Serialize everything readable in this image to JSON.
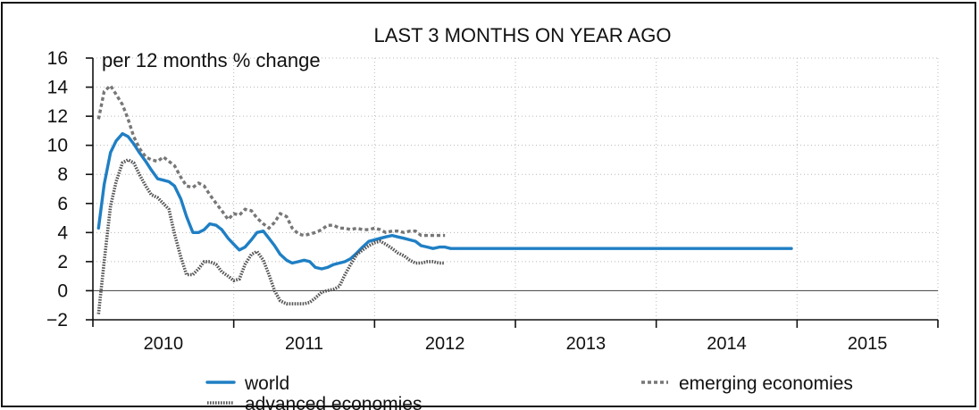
{
  "chart_data": {
    "type": "line",
    "title": "LAST 3 MONTHS ON YEAR AGO",
    "ylabel": "per 12 months % change",
    "xlabel": "",
    "ylim": [
      -2,
      16
    ],
    "xlim": [
      2009.5,
      2015.5
    ],
    "y_ticks": [
      -2,
      0,
      2,
      4,
      6,
      8,
      10,
      12,
      14,
      16
    ],
    "y_tick_labels": [
      "−2",
      "0",
      "2",
      "4",
      "6",
      "8",
      "10",
      "12",
      "14",
      "16"
    ],
    "x_ticks": [
      2010,
      2011,
      2012,
      2013,
      2014,
      2015
    ],
    "x_tick_labels": [
      "2010",
      "2011",
      "2012",
      "2013",
      "2014",
      "2015"
    ],
    "x_boundaries": [
      2009.5,
      2010.5,
      2011.5,
      2012.5,
      2013.5,
      2014.5,
      2015.5
    ],
    "grid": true,
    "legend_position": "bottom",
    "series": [
      {
        "name": "world",
        "style": "solid",
        "color": "#1f7fc4",
        "x": [
          2009.54,
          2009.58,
          2009.625,
          2009.665,
          2009.71,
          2009.75,
          2009.79,
          2009.83,
          2009.875,
          2009.915,
          2009.96,
          2010.0,
          2010.04,
          2010.08,
          2010.125,
          2010.165,
          2010.21,
          2010.25,
          2010.29,
          2010.33,
          2010.375,
          2010.415,
          2010.46,
          2010.5,
          2010.54,
          2010.58,
          2010.625,
          2010.665,
          2010.71,
          2010.75,
          2010.79,
          2010.83,
          2010.875,
          2010.915,
          2010.96,
          2011.0,
          2011.04,
          2011.08,
          2011.125,
          2011.165,
          2011.21,
          2011.25,
          2011.29,
          2011.33,
          2011.375,
          2011.415,
          2011.46,
          2011.5,
          2011.54,
          2011.58,
          2011.625,
          2011.665,
          2011.71,
          2011.75,
          2011.79,
          2011.83,
          2011.875,
          2011.915,
          2011.96,
          2012.0,
          2012.04,
          2012.08,
          2012.125,
          2012.165,
          2012.21,
          2012.25,
          2012.29,
          2012.33,
          2012.375,
          2012.415,
          2012.46,
          2012.5,
          2012.54,
          2012.58,
          2012.625,
          2012.665,
          2012.71,
          2012.75,
          2012.79,
          2012.83,
          2012.875,
          2012.915,
          2012.96,
          2013.0,
          2013.04,
          2013.08,
          2013.125,
          2013.165,
          2013.21,
          2013.25,
          2013.29,
          2013.33,
          2013.375,
          2013.415,
          2013.46,
          2013.5,
          2013.54,
          2013.58,
          2013.625,
          2013.665,
          2013.71,
          2013.75,
          2013.79,
          2013.83,
          2013.875,
          2013.915,
          2013.96,
          2014.0,
          2014.04,
          2014.08,
          2014.125,
          2014.165,
          2014.21,
          2014.25,
          2014.29,
          2014.33,
          2014.375,
          2014.415,
          2014.46
        ],
        "y": [
          4.3,
          7.3,
          9.5,
          10.3,
          10.8,
          10.6,
          10.1,
          9.5,
          8.9,
          8.3,
          7.7,
          7.6,
          7.5,
          7.2,
          6.3,
          5.1,
          4.0,
          4.0,
          4.2,
          4.6,
          4.5,
          4.2,
          3.6,
          3.2,
          2.8,
          3.0,
          3.5,
          4.0,
          4.1,
          3.6,
          3.1,
          2.5,
          2.1,
          1.9,
          2.0,
          2.1,
          2.0,
          1.6,
          1.5,
          1.6,
          1.8,
          1.9,
          2.0,
          2.2,
          2.6,
          3.0,
          3.4,
          3.5,
          3.6,
          3.7,
          3.8,
          3.7,
          3.6,
          3.5,
          3.4,
          3.1,
          3.0,
          2.9,
          3.0,
          3.0,
          2.9,
          2.9,
          2.9,
          2.9,
          2.9,
          2.9,
          2.9,
          2.9,
          2.9,
          2.9,
          2.9,
          2.9,
          2.9,
          2.9,
          2.9,
          2.9,
          2.9,
          2.9,
          2.9,
          2.9,
          2.9,
          2.9,
          2.9,
          2.9,
          2.9,
          2.9,
          2.9,
          2.9,
          2.9,
          2.9,
          2.9,
          2.9,
          2.9,
          2.9,
          2.9,
          2.9,
          2.9,
          2.9,
          2.9,
          2.9,
          2.9,
          2.9,
          2.9,
          2.9,
          2.9,
          2.9,
          2.9,
          2.9,
          2.9,
          2.9,
          2.9,
          2.9,
          2.9,
          2.9,
          2.9,
          2.9,
          2.9,
          2.9,
          2.9
        ]
      },
      {
        "name": "emerging economies",
        "style": "dashed",
        "color": "#777777",
        "x": [
          2009.54,
          2009.58,
          2009.625,
          2009.665,
          2009.71,
          2009.75,
          2009.79,
          2009.83,
          2009.875,
          2009.915,
          2009.96,
          2010.0,
          2010.04,
          2010.08,
          2010.125,
          2010.165,
          2010.21,
          2010.25,
          2010.29,
          2010.33,
          2010.375,
          2010.415,
          2010.46,
          2010.5,
          2010.54,
          2010.58,
          2010.625,
          2010.665,
          2010.71,
          2010.75,
          2010.79,
          2010.83,
          2010.875,
          2010.915,
          2010.96,
          2011.0,
          2011.04,
          2011.08,
          2011.125,
          2011.165,
          2011.21,
          2011.25,
          2011.29,
          2011.33,
          2011.375,
          2011.415,
          2011.46,
          2011.5,
          2011.54,
          2011.58,
          2011.625,
          2011.665,
          2011.71,
          2011.75,
          2011.79,
          2011.83,
          2011.875,
          2011.915,
          2011.96,
          2012.0
        ],
        "y": [
          11.8,
          13.7,
          14.1,
          13.5,
          12.8,
          11.8,
          10.6,
          9.8,
          9.2,
          9.0,
          8.9,
          9.2,
          8.9,
          8.6,
          7.8,
          7.2,
          7.1,
          7.4,
          7.2,
          6.6,
          6.0,
          5.5,
          4.9,
          5.3,
          5.2,
          5.6,
          5.5,
          5.0,
          4.6,
          4.3,
          4.7,
          5.3,
          5.1,
          4.3,
          3.9,
          3.8,
          3.9,
          4.0,
          4.2,
          4.5,
          4.5,
          4.3,
          4.3,
          4.2,
          4.3,
          4.2,
          4.2,
          4.3,
          4.2,
          4.0,
          4.1,
          4.1,
          4.0,
          4.1,
          4.1,
          3.8,
          3.8,
          3.8,
          3.8,
          3.8
        ]
      },
      {
        "name": "advanced economies",
        "style": "dotted",
        "color": "#555555",
        "x": [
          2009.54,
          2009.58,
          2009.625,
          2009.665,
          2009.71,
          2009.75,
          2009.79,
          2009.83,
          2009.875,
          2009.915,
          2009.96,
          2010.0,
          2010.04,
          2010.08,
          2010.125,
          2010.165,
          2010.21,
          2010.25,
          2010.29,
          2010.33,
          2010.375,
          2010.415,
          2010.46,
          2010.5,
          2010.54,
          2010.58,
          2010.625,
          2010.665,
          2010.71,
          2010.75,
          2010.79,
          2010.83,
          2010.875,
          2010.915,
          2010.96,
          2011.0,
          2011.04,
          2011.08,
          2011.125,
          2011.165,
          2011.21,
          2011.25,
          2011.29,
          2011.33,
          2011.375,
          2011.415,
          2011.46,
          2011.5,
          2011.54,
          2011.58,
          2011.625,
          2011.665,
          2011.71,
          2011.75,
          2011.79,
          2011.83,
          2011.875,
          2011.915,
          2011.96,
          2012.0
        ],
        "y": [
          -1.6,
          2.0,
          5.8,
          7.5,
          8.8,
          9.0,
          8.8,
          8.0,
          7.2,
          6.6,
          6.4,
          6.0,
          5.6,
          3.9,
          2.3,
          1.1,
          1.1,
          1.5,
          2.0,
          2.0,
          1.8,
          1.3,
          1.0,
          0.7,
          0.8,
          1.8,
          2.5,
          2.7,
          2.1,
          1.1,
          0.0,
          -0.7,
          -0.9,
          -0.9,
          -0.9,
          -0.9,
          -0.8,
          -0.5,
          -0.1,
          0.0,
          0.1,
          0.3,
          1.1,
          1.8,
          2.5,
          2.8,
          3.1,
          3.3,
          3.4,
          3.2,
          2.9,
          2.6,
          2.4,
          2.1,
          1.9,
          1.9,
          2.0,
          2.0,
          1.9,
          1.9
        ]
      }
    ]
  }
}
